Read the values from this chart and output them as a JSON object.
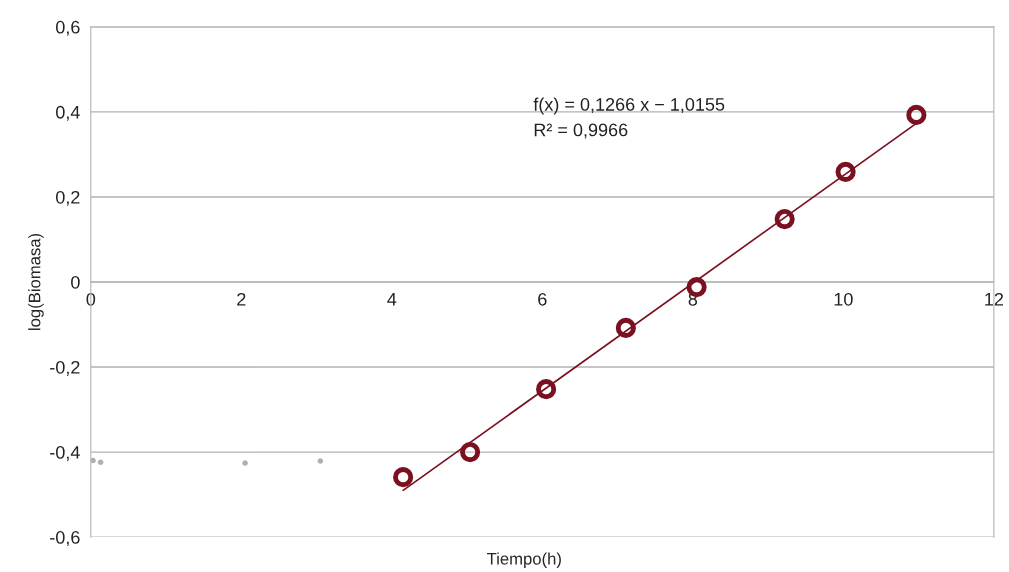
{
  "chart_data": {
    "type": "scatter",
    "xlabel": "Tiempo(h)",
    "ylabel": "log(Biomasa)",
    "series": [
      {
        "color": "#b0b0b0",
        "x": [
          0.03,
          0.13,
          2.05,
          3.05
        ],
        "values": [
          -0.42,
          -0.424,
          -0.426,
          -0.421
        ]
      },
      {
        "color": "#7b1020",
        "x": [
          4.15,
          5.04,
          6.05,
          7.11,
          8.05,
          9.22,
          10.03,
          10.97
        ],
        "values": [
          -0.459,
          -0.4,
          -0.252,
          -0.108,
          -0.012,
          0.148,
          0.259,
          0.393
        ]
      },
      {
        "type": "line",
        "marker": "none",
        "color": "#7b1020",
        "x": [
          4.15,
          10.97
        ],
        "values": [
          -0.49,
          0.373
        ]
      }
    ],
    "annotations": [
      "f(x) = 0,1266 x − 1,0155",
      "R² = 0,9966"
    ],
    "xlim": [
      0,
      12
    ],
    "xticks": [
      0,
      2,
      4,
      6,
      8,
      10,
      12
    ],
    "ylim": [
      -0.6,
      0.6
    ],
    "yticks": [
      {
        "value": -0.6,
        "label": "-0,6"
      },
      {
        "value": -0.4,
        "label": "-0,4"
      },
      {
        "value": -0.2,
        "label": "-0,2"
      },
      0,
      {
        "value": 0.2,
        "label": "0,2"
      },
      {
        "value": 0.4,
        "label": "0,4"
      },
      {
        "value": 0.6,
        "label": "0,6"
      }
    ],
    "grid": "y",
    "marker": "circle"
  }
}
